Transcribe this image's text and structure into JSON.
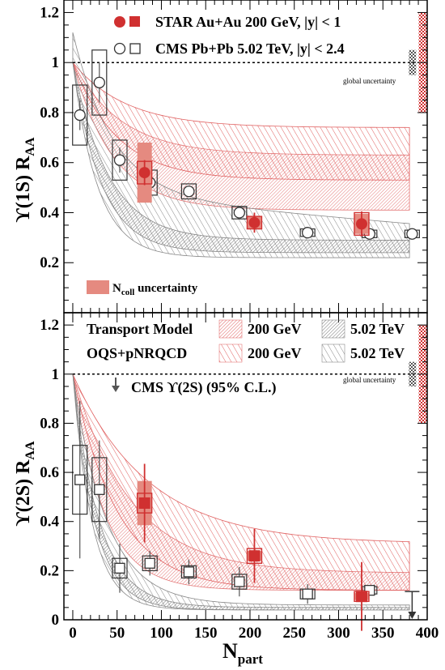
{
  "colors": {
    "star": "#d03030",
    "star_light": "#e58a80",
    "cms": "#555555",
    "band_red": "#e06060",
    "band_gray": "#888888"
  },
  "chart_data": [
    {
      "type": "scatter",
      "ylabel": "ϒ(1S) R",
      "ylabel_sub": "AA",
      "xlim": [
        -10,
        400
      ],
      "ylim": [
        0,
        1.25
      ],
      "yticks": [
        "0.2",
        "0.4",
        "0.6",
        "0.8",
        "1",
        "1.2"
      ],
      "legend": {
        "star": "STAR Au+Au 200 GeV, |y| < 1",
        "cms": "CMS Pb+Pb 5.02 TeV, |y| < 2.4",
        "ncoll": "N",
        "ncoll_sub": "coll",
        "ncoll_tail": " uncertainty"
      },
      "global_uncertainty_label": "global uncertainty",
      "star_points": [
        {
          "x": 81,
          "y": 0.56,
          "err": 0.05,
          "sys": 0.045,
          "ncoll": 0.12
        },
        {
          "x": 205,
          "y": 0.36,
          "err": 0.04,
          "sys": 0.025,
          "ncoll": 0.025
        },
        {
          "x": 326,
          "y": 0.355,
          "err": 0.05,
          "sys": 0.045,
          "ncoll": 0.04
        }
      ],
      "cms_points": [
        {
          "x": 8,
          "y": 0.79,
          "err": 0.06,
          "sys": 0.12
        },
        {
          "x": 30,
          "y": 0.92,
          "err": 0.08,
          "sys": 0.13
        },
        {
          "x": 53,
          "y": 0.61,
          "err": 0.05,
          "sys": 0.08
        },
        {
          "x": 87,
          "y": 0.52,
          "err": 0.03,
          "sys": 0.05
        },
        {
          "x": 131,
          "y": 0.485,
          "err": 0.02,
          "sys": 0.03
        },
        {
          "x": 188,
          "y": 0.4,
          "err": 0.02,
          "sys": 0.025
        },
        {
          "x": 265,
          "y": 0.32,
          "err": 0.01,
          "sys": 0.015
        },
        {
          "x": 335,
          "y": 0.315,
          "err": 0.01,
          "sys": 0.015
        },
        {
          "x": 383,
          "y": 0.315,
          "err": 0.01,
          "sys": 0.015
        }
      ]
    },
    {
      "type": "scatter",
      "ylabel": "ϒ(2S) R",
      "ylabel_sub": "AA",
      "xlabel": "N",
      "xlabel_sub": "part",
      "xlim": [
        -10,
        400
      ],
      "ylim": [
        0,
        1.25
      ],
      "xticks": [
        "0",
        "50",
        "100",
        "150",
        "200",
        "250",
        "300",
        "350",
        "400"
      ],
      "yticks": [
        "0",
        "0.2",
        "0.4",
        "0.6",
        "0.8",
        "1",
        "1.2"
      ],
      "legend": {
        "transport": "Transport Model",
        "oqs": "OQS+pNRQCD",
        "e200": "200 GeV",
        "e502": "5.02 TeV",
        "cms_limit": "CMS  ϒ(2S) (95% C.L.)"
      },
      "global_uncertainty_label": "global uncertainty",
      "star_points": [
        {
          "x": 81,
          "y": 0.475,
          "err": 0.16,
          "sys": 0.04,
          "ncoll": 0.09
        },
        {
          "x": 205,
          "y": 0.26,
          "err": 0.11,
          "sys": 0.03,
          "ncoll": 0.02
        },
        {
          "x": 326,
          "y": 0.095,
          "err": 0.14,
          "sys": 0.02,
          "ncoll": 0.015
        }
      ],
      "cms_points": [
        {
          "x": 8,
          "y": 0.57,
          "err": 0.32,
          "sys": 0.14
        },
        {
          "x": 30,
          "y": 0.53,
          "err": 0.2,
          "sys": 0.13
        },
        {
          "x": 53,
          "y": 0.21,
          "err": 0.1,
          "sys": 0.04
        },
        {
          "x": 87,
          "y": 0.23,
          "err": 0.05,
          "sys": 0.03
        },
        {
          "x": 131,
          "y": 0.195,
          "err": 0.05,
          "sys": 0.025
        },
        {
          "x": 188,
          "y": 0.155,
          "err": 0.06,
          "sys": 0.03
        },
        {
          "x": 265,
          "y": 0.105,
          "err": 0.04,
          "sys": 0.02
        },
        {
          "x": 335,
          "y": 0.12,
          "err": 0.015,
          "sys": 0.015
        }
      ],
      "cms_upper_limit": {
        "x": 383,
        "y": 0.115
      }
    }
  ]
}
